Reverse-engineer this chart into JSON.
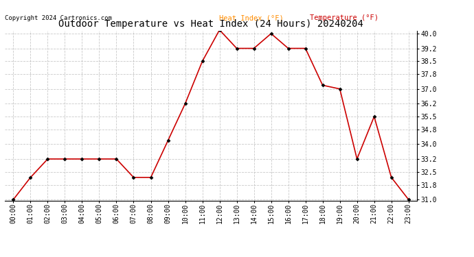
{
  "title": "Outdoor Temperature vs Heat Index (24 Hours) 20240204",
  "copyright": "Copyright 2024 Cartronics.com",
  "legend_heat_index": "Heat Index (°F)",
  "legend_temperature": "Temperature (°F)",
  "x_labels": [
    "00:00",
    "01:00",
    "02:00",
    "03:00",
    "04:00",
    "05:00",
    "06:00",
    "07:00",
    "08:00",
    "09:00",
    "10:00",
    "11:00",
    "12:00",
    "13:00",
    "14:00",
    "15:00",
    "16:00",
    "17:00",
    "18:00",
    "19:00",
    "20:00",
    "21:00",
    "22:00",
    "23:00"
  ],
  "temperature": [
    31.0,
    32.2,
    33.2,
    33.2,
    33.2,
    33.2,
    33.2,
    32.2,
    32.2,
    34.2,
    36.2,
    38.5,
    40.2,
    39.2,
    39.2,
    40.0,
    39.2,
    39.2,
    37.2,
    37.0,
    33.2,
    35.5,
    32.2,
    31.0
  ],
  "ylim_min": 31.0,
  "ylim_max": 40.0,
  "yticks": [
    31.0,
    31.8,
    32.5,
    33.2,
    34.0,
    34.8,
    35.5,
    36.2,
    37.0,
    37.8,
    38.5,
    39.2,
    40.0
  ],
  "line_color": "#cc0000",
  "marker_color": "#000000",
  "title_fontsize": 10,
  "legend_fontsize": 7.5,
  "copyright_fontsize": 6.5,
  "tick_fontsize": 7,
  "legend_color_heat": "#ff8c00",
  "legend_color_temp": "#cc0000",
  "bg_color": "#ffffff",
  "grid_color": "#bbbbbb"
}
